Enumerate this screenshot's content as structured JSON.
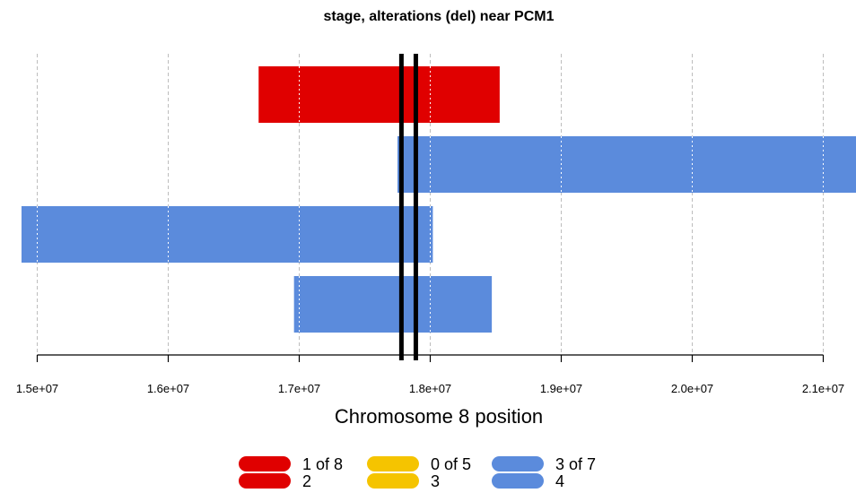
{
  "chart_data": {
    "type": "bar",
    "orientation": "horizontal-ranges",
    "title": "stage, alterations (del) near PCM1",
    "xlabel": "Chromosome 8 position",
    "ylabel": "",
    "xlim": [
      15000000,
      21250000
    ],
    "x_ticks": [
      15000000,
      16000000,
      17000000,
      18000000,
      19000000,
      20000000,
      21000000
    ],
    "x_tick_labels": [
      "1.5e+07",
      "1.6e+07",
      "1.7e+07",
      "1.8e+07",
      "1.9e+07",
      "2.0e+07",
      "2.1e+07"
    ],
    "grid": true,
    "gene_bounds": [
      17780000,
      17890000
    ],
    "segments": [
      {
        "start": 16690000,
        "end": 18530000,
        "stage": "2",
        "color": "#e00000"
      },
      {
        "start": 17750000,
        "end": 21250000,
        "stage": "4",
        "color": "#5b8bdc"
      },
      {
        "start": 14880000,
        "end": 18020000,
        "stage": "4",
        "color": "#5b8bdc"
      },
      {
        "start": 16960000,
        "end": 18470000,
        "stage": "4",
        "color": "#5b8bdc"
      }
    ],
    "legend_placement": "bottom",
    "legend": [
      {
        "label": "1 of 8",
        "stage": "2",
        "color": "#e00000"
      },
      {
        "label": "0 of 5",
        "stage": "3",
        "color": "#f5c400"
      },
      {
        "label": "3 of 7",
        "stage": "4",
        "color": "#5b8bdc"
      }
    ]
  }
}
